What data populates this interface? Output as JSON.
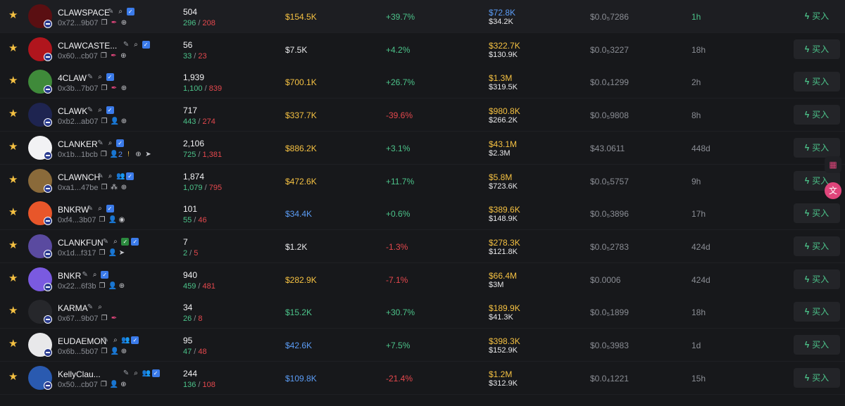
{
  "buy_label": "买入",
  "colors": {
    "star": "#f5c142",
    "green": "#4cc38a",
    "red": "#e5484d",
    "gold": "#f5c142",
    "blue": "#5b9cf5",
    "muted": "#8a8d94"
  },
  "rows": [
    {
      "name": "CLAWSPACE",
      "addr": "0x72...9b07",
      "holders": "504",
      "buys": "296",
      "sells": "208",
      "mcap": "$154.5K",
      "mcap_color": "#f5c142",
      "change": "+39.7%",
      "change_color": "#4cc38a",
      "liq_top": "$72.8K",
      "liq_top_color": "#5b9cf5",
      "liq_bot": "$34.2K",
      "price": "$0.0₅7286",
      "age": "1h",
      "age_color": "#4cc38a",
      "avatar": "#5a0f12",
      "icons": [
        "pen-icon",
        "search-icon",
        "verified-icon"
      ],
      "addr_icons": [
        "copy-icon",
        "feather-icon",
        "globe-icon"
      ]
    },
    {
      "name": "CLAWCASTE...",
      "addr": "0x60...cb07",
      "holders": "56",
      "buys": "33",
      "sells": "23",
      "mcap": "$7.5K",
      "mcap_color": "#e8e8ea",
      "change": "+4.2%",
      "change_color": "#4cc38a",
      "liq_top": "$322.7K",
      "liq_top_color": "#f5c142",
      "liq_bot": "$130.9K",
      "price": "$0.0₅3227",
      "age": "18h",
      "age_color": "#8a8d94",
      "avatar": "#b0151d",
      "icons": [
        "pen-icon",
        "search-icon",
        "verified-icon"
      ],
      "addr_icons": [
        "copy-icon",
        "feather-icon",
        "globe-icon"
      ]
    },
    {
      "name": "4CLAW",
      "addr": "0x3b...7b07",
      "holders": "1,939",
      "buys": "1,100",
      "sells": "839",
      "mcap": "$700.1K",
      "mcap_color": "#f5c142",
      "change": "+26.7%",
      "change_color": "#4cc38a",
      "liq_top": "$1.3M",
      "liq_top_color": "#f5c142",
      "liq_bot": "$319.5K",
      "price": "$0.0₄1299",
      "age": "2h",
      "age_color": "#8a8d94",
      "avatar": "#3f8a3a",
      "icons": [
        "pen-icon",
        "search-icon",
        "verified-icon"
      ],
      "addr_icons": [
        "copy-icon",
        "feather-icon",
        "globe-icon"
      ]
    },
    {
      "name": "CLAWK",
      "addr": "0xb2...ab07",
      "holders": "717",
      "buys": "443",
      "sells": "274",
      "mcap": "$337.7K",
      "mcap_color": "#f5c142",
      "change": "-39.6%",
      "change_color": "#e5484d",
      "liq_top": "$980.8K",
      "liq_top_color": "#f5c142",
      "liq_bot": "$266.2K",
      "price": "$0.0₅9808",
      "age": "8h",
      "age_color": "#8a8d94",
      "avatar": "#1e2450",
      "icons": [
        "pen-icon",
        "search-icon",
        "verified-icon"
      ],
      "addr_icons": [
        "copy-icon",
        "person-icon",
        "globe-icon"
      ]
    },
    {
      "name": "CLANKER",
      "addr": "0x1b...1bcb",
      "holders": "2,106",
      "buys": "725",
      "sells": "1,381",
      "mcap": "$886.2K",
      "mcap_color": "#f5c142",
      "change": "+3.1%",
      "change_color": "#4cc38a",
      "liq_top": "$43.1M",
      "liq_top_color": "#f5c142",
      "liq_bot": "$2.3M",
      "price": "$43.0611",
      "age": "448d",
      "age_color": "#8a8d94",
      "avatar": "#f2f2f4",
      "icons": [
        "pen-icon",
        "search-icon",
        "verified-icon"
      ],
      "addr_icons": [
        "copy-icon",
        "person-icon",
        "warning-icon",
        "globe-icon",
        "telegram-icon"
      ],
      "addr_extra": "2"
    },
    {
      "name": "CLAWNCH",
      "addr": "0xa1...47be",
      "holders": "1,874",
      "buys": "1,079",
      "sells": "795",
      "mcap": "$472.6K",
      "mcap_color": "#f5c142",
      "change": "+11.7%",
      "change_color": "#4cc38a",
      "liq_top": "$5.8M",
      "liq_top_color": "#f5c142",
      "liq_bot": "$723.6K",
      "price": "$0.0₅5757",
      "age": "9h",
      "age_color": "#8a8d94",
      "avatar": "#8a6a3a",
      "icons": [
        "pen-icon",
        "search-icon",
        "people-icon",
        "verified-icon"
      ],
      "addr_icons": [
        "copy-icon",
        "group-icon",
        "globe-icon"
      ]
    },
    {
      "name": "BNKRW",
      "addr": "0xf4...3b07",
      "holders": "101",
      "buys": "55",
      "sells": "46",
      "mcap": "$34.4K",
      "mcap_color": "#5b9cf5",
      "change": "+0.6%",
      "change_color": "#4cc38a",
      "liq_top": "$389.6K",
      "liq_top_color": "#f5c142",
      "liq_bot": "$148.9K",
      "price": "$0.0₅3896",
      "age": "17h",
      "age_color": "#8a8d94",
      "avatar": "#e8562a",
      "icons": [
        "pen-icon",
        "search-icon",
        "verified-icon"
      ],
      "addr_icons": [
        "copy-icon",
        "person-icon",
        "github-icon"
      ]
    },
    {
      "name": "CLANKFUN",
      "addr": "0x1d...f317",
      "holders": "7",
      "buys": "2",
      "sells": "5",
      "mcap": "$1.2K",
      "mcap_color": "#e8e8ea",
      "change": "-1.3%",
      "change_color": "#e5484d",
      "liq_top": "$278.3K",
      "liq_top_color": "#f5c142",
      "liq_bot": "$121.8K",
      "price": "$0.0₅2783",
      "age": "424d",
      "age_color": "#8a8d94",
      "avatar": "#5a4aa0",
      "icons": [
        "pen-icon",
        "search-icon",
        "green-icon",
        "verified-icon"
      ],
      "addr_icons": [
        "copy-icon",
        "person-icon",
        "telegram-icon"
      ]
    },
    {
      "name": "BNKR",
      "addr": "0x22...6f3b",
      "holders": "940",
      "buys": "459",
      "sells": "481",
      "mcap": "$282.9K",
      "mcap_color": "#f5c142",
      "change": "-7.1%",
      "change_color": "#e5484d",
      "liq_top": "$66.4M",
      "liq_top_color": "#f5c142",
      "liq_bot": "$3M",
      "price": "$0.0006",
      "age": "424d",
      "age_color": "#8a8d94",
      "avatar": "#7a5ae0",
      "icons": [
        "pen-icon",
        "search-icon",
        "verified-icon"
      ],
      "addr_icons": [
        "copy-icon",
        "person-icon",
        "globe-icon"
      ]
    },
    {
      "name": "KARMA",
      "addr": "0x67...9b07",
      "holders": "34",
      "buys": "26",
      "sells": "8",
      "mcap": "$15.2K",
      "mcap_color": "#4cc38a",
      "change": "+30.7%",
      "change_color": "#4cc38a",
      "liq_top": "$189.9K",
      "liq_top_color": "#f5c142",
      "liq_bot": "$41.3K",
      "price": "$0.0₅1899",
      "age": "18h",
      "age_color": "#8a8d94",
      "avatar": "#26272b",
      "icons": [
        "pen-icon",
        "search-icon"
      ],
      "addr_icons": [
        "copy-icon",
        "feather-icon"
      ]
    },
    {
      "name": "EUDAEMON",
      "addr": "0x6b...5b07",
      "holders": "95",
      "buys": "47",
      "sells": "48",
      "mcap": "$42.6K",
      "mcap_color": "#5b9cf5",
      "change": "+7.5%",
      "change_color": "#4cc38a",
      "liq_top": "$398.3K",
      "liq_top_color": "#f5c142",
      "liq_bot": "$152.9K",
      "price": "$0.0₅3983",
      "age": "1d",
      "age_color": "#8a8d94",
      "avatar": "#e8e8ea",
      "icons": [
        "pen-icon",
        "search-icon",
        "people-icon",
        "verified-icon"
      ],
      "addr_icons": [
        "copy-icon",
        "person-icon",
        "globe-icon"
      ]
    },
    {
      "name": "KellyClau...",
      "addr": "0x50...cb07",
      "holders": "244",
      "buys": "136",
      "sells": "108",
      "mcap": "$109.8K",
      "mcap_color": "#5b9cf5",
      "change": "-21.4%",
      "change_color": "#e5484d",
      "liq_top": "$1.2M",
      "liq_top_color": "#f5c142",
      "liq_bot": "$312.9K",
      "price": "$0.0₄1221",
      "age": "15h",
      "age_color": "#8a8d94",
      "avatar": "#2a5ab0",
      "icons": [
        "pen-icon",
        "search-icon",
        "people-icon",
        "verified-icon"
      ],
      "addr_icons": [
        "copy-icon",
        "person-icon",
        "globe-icon"
      ]
    }
  ]
}
